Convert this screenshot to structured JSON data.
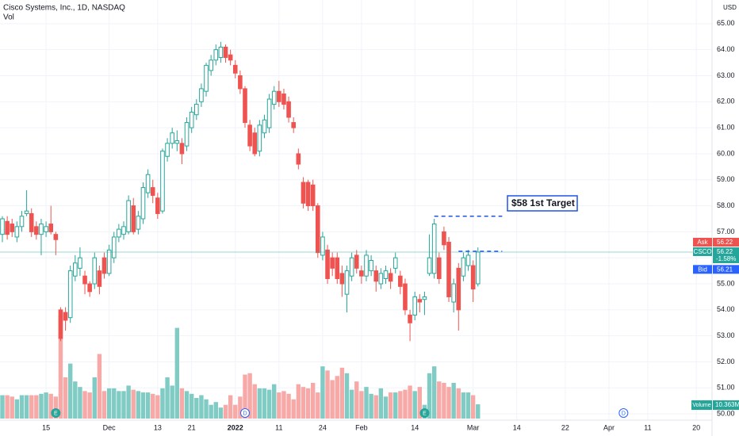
{
  "chart_data": {
    "type": "candlestick",
    "title": "Cisco Systems, Inc., 1D, NASDAQ",
    "subtitle": "Vol",
    "currency": "USD",
    "categories": [
      null,
      null,
      null,
      null,
      null,
      null,
      null,
      null,
      null,
      "15",
      null,
      null,
      null,
      null,
      null,
      null,
      null,
      null,
      null,
      null,
      null,
      null,
      "Dec",
      null,
      null,
      null,
      null,
      null,
      null,
      null,
      null,
      null,
      "13",
      null,
      null,
      null,
      null,
      null,
      null,
      "21",
      null,
      null,
      null,
      null,
      null,
      null,
      null,
      null,
      "2022",
      null,
      null,
      null,
      null,
      null,
      null,
      null,
      null,
      "11",
      null,
      null,
      null,
      null,
      null,
      null,
      null,
      null,
      "24",
      null,
      null,
      null,
      null,
      null,
      null,
      null,
      "Feb",
      null,
      null,
      null,
      null,
      null,
      null,
      null,
      null,
      null,
      null,
      "14",
      null,
      null,
      null,
      null,
      null,
      null,
      null,
      null,
      null,
      null,
      null,
      "Mar",
      null,
      null,
      null,
      null,
      null,
      null,
      null,
      null,
      "14",
      null,
      null,
      null,
      null,
      null,
      null,
      null,
      null,
      null,
      "22",
      null,
      null,
      null,
      null,
      null,
      null,
      null,
      null,
      "Apr",
      null,
      null,
      null,
      null,
      null,
      null,
      null,
      "11",
      null,
      null,
      null,
      null,
      null,
      null,
      null,
      null,
      null,
      "20"
    ],
    "open": [
      56.9,
      57.4,
      57.3,
      56.8,
      57.2,
      57.7,
      57.7,
      57.2,
      56.9,
      57.0,
      57.3,
      56.9,
      54.0,
      53.9,
      53.7,
      55.3,
      55.6,
      55.3,
      55.0,
      55.0,
      55.5,
      56.0,
      55.4,
      56.0,
      56.8,
      56.9,
      57.0,
      58.0,
      57.1,
      57.5,
      58.5,
      58.7,
      58.3,
      57.8,
      59.9,
      60.4,
      60.4,
      60.4,
      60.3,
      61.0,
      61.5,
      62.0,
      62.4,
      63.2,
      63.6,
      63.7,
      64.1,
      63.8,
      63.4,
      63.0,
      62.5,
      61.1,
      60.8,
      60.1,
      60.8,
      61.0,
      61.9,
      62.4,
      62.3,
      62.0,
      61.2,
      60.0,
      58.9,
      58.9,
      58.8,
      58.0,
      56.1,
      56.3,
      56.0,
      56.0,
      55.4,
      54.6,
      55.3,
      56.1,
      55.5,
      55.3,
      55.5,
      55.5,
      55.0,
      55.2,
      55.4,
      55.6,
      55.3,
      55.0,
      53.8,
      53.8,
      54.4,
      54.4,
      55.4,
      55.4,
      56.0,
      57.0,
      56.6,
      54.3,
      55.6,
      55.3,
      55.7,
      55.7,
      55.0,
      null,
      null,
      null,
      null,
      null,
      null,
      null,
      null,
      null,
      null,
      null,
      null,
      null,
      null,
      null,
      null,
      null,
      null,
      null,
      null,
      null,
      null,
      null,
      null,
      null,
      null,
      null,
      null,
      null,
      null,
      null,
      null,
      null,
      null,
      null,
      null,
      null,
      null,
      null,
      null,
      null,
      null,
      null,
      null,
      null
    ],
    "high": [
      57.6,
      57.6,
      57.5,
      57.4,
      57.8,
      58.6,
      57.9,
      57.4,
      57.5,
      57.4,
      58.0,
      57.0,
      54.1,
      54.1,
      55.7,
      56.1,
      56.4,
      55.5,
      55.1,
      56.2,
      55.7,
      56.2,
      56.5,
      57.0,
      57.3,
      57.4,
      58.4,
      58.3,
      57.8,
      58.9,
      59.4,
      59.0,
      58.5,
      60.2,
      60.6,
      61.0,
      60.9,
      60.6,
      61.4,
      61.8,
      62.1,
      62.7,
      63.5,
      63.8,
      64.2,
      64.3,
      64.2,
      64.0,
      63.6,
      63.2,
      62.6,
      61.3,
      61.0,
      61.3,
      61.5,
      62.3,
      62.6,
      62.8,
      62.5,
      62.2,
      61.4,
      60.2,
      59.1,
      59.0,
      59.0,
      58.1,
      57.0,
      56.5,
      56.2,
      56.2,
      55.7,
      55.7,
      56.2,
      56.3,
      55.7,
      56.3,
      56.1,
      55.7,
      55.6,
      55.7,
      55.6,
      56.2,
      55.5,
      55.2,
      54.0,
      54.7,
      54.6,
      54.7,
      56.9,
      57.5,
      56.2,
      57.2,
      56.8,
      55.2,
      55.8,
      56.2,
      56.3,
      55.9,
      56.4,
      null,
      null,
      null,
      null,
      null,
      null,
      null,
      null,
      null,
      null,
      null,
      null,
      null,
      null,
      null,
      null,
      null,
      null,
      null,
      null,
      null,
      null,
      null,
      null,
      null,
      null,
      null,
      null,
      null,
      null,
      null,
      null,
      null,
      null,
      null,
      null,
      null,
      null,
      null,
      null,
      null,
      null,
      null,
      null,
      null
    ],
    "low": [
      56.6,
      56.7,
      56.8,
      56.6,
      57.0,
      57.6,
      56.8,
      56.7,
      56.1,
      56.8,
      56.9,
      56.1,
      52.8,
      53.2,
      53.5,
      55.1,
      55.3,
      54.6,
      54.5,
      54.8,
      54.6,
      55.2,
      55.3,
      55.8,
      56.6,
      56.7,
      56.9,
      56.9,
      56.9,
      57.3,
      58.3,
      58.1,
      57.5,
      57.7,
      59.7,
      60.2,
      60.1,
      59.6,
      60.1,
      60.8,
      61.3,
      61.8,
      62.2,
      63.0,
      63.4,
      63.5,
      63.5,
      63.4,
      62.9,
      62.3,
      61.0,
      60.1,
      59.9,
      59.9,
      60.6,
      60.8,
      61.7,
      61.8,
      61.7,
      61.2,
      60.8,
      59.4,
      57.9,
      57.8,
      57.8,
      56.0,
      55.9,
      55.0,
      55.3,
      55.0,
      54.5,
      53.9,
      55.1,
      55.4,
      55.0,
      55.1,
      55.3,
      54.7,
      54.8,
      55.0,
      54.8,
      55.4,
      54.6,
      53.8,
      52.8,
      53.6,
      53.9,
      53.8,
      55.3,
      55.2,
      55.0,
      56.3,
      54.3,
      53.9,
      53.2,
      55.1,
      55.5,
      54.3,
      54.9,
      null,
      null,
      null,
      null,
      null,
      null,
      null,
      null,
      null,
      null,
      null,
      null,
      null,
      null,
      null,
      null,
      null,
      null,
      null,
      null,
      null,
      null,
      null,
      null,
      null,
      null,
      null,
      null,
      null,
      null,
      null,
      null,
      null,
      null,
      null,
      null,
      null,
      null,
      null,
      null,
      null,
      null,
      null,
      null,
      null
    ],
    "close": [
      57.5,
      56.9,
      57.0,
      57.2,
      57.6,
      57.8,
      57.0,
      56.9,
      57.3,
      57.2,
      57.0,
      56.7,
      52.9,
      53.6,
      55.5,
      55.8,
      56.0,
      55.0,
      54.7,
      56.0,
      54.9,
      55.4,
      56.3,
      56.8,
      57.1,
      57.2,
      58.2,
      57.0,
      57.6,
      58.7,
      59.2,
      58.4,
      57.7,
      60.1,
      60.4,
      60.8,
      60.5,
      60.0,
      61.2,
      61.6,
      61.9,
      62.5,
      63.4,
      63.6,
      64.0,
      64.1,
      63.7,
      63.6,
      63.1,
      62.5,
      61.2,
      60.3,
      60.0,
      61.1,
      61.3,
      62.1,
      62.4,
      62.0,
      61.9,
      61.4,
      61.0,
      59.6,
      58.1,
      58.0,
      58.0,
      56.2,
      56.8,
      55.2,
      55.6,
      55.2,
      55.0,
      55.5,
      56.0,
      55.6,
      55.3,
      56.1,
      55.9,
      55.1,
      55.4,
      55.5,
      55.1,
      56.0,
      54.9,
      54.0,
      53.5,
      54.5,
      54.3,
      54.5,
      56.0,
      57.3,
      55.2,
      56.5,
      54.5,
      55.0,
      54.0,
      56.0,
      56.1,
      54.8,
      56.22,
      null,
      null,
      null,
      null,
      null,
      null,
      null,
      null,
      null,
      null,
      null,
      null,
      null,
      null,
      null,
      null,
      null,
      null,
      null,
      null,
      null,
      null,
      null,
      null,
      null,
      null,
      null,
      null,
      null,
      null,
      null,
      null,
      null,
      null,
      null,
      null,
      null,
      null,
      null,
      null,
      null,
      null,
      null,
      null,
      null
    ],
    "volume": [
      17,
      17,
      16,
      14,
      17,
      17,
      17,
      17,
      18,
      19,
      18,
      16,
      75,
      30,
      40,
      27,
      23,
      20,
      19,
      30,
      47,
      20,
      22,
      22,
      20,
      20,
      24,
      21,
      20,
      19,
      19,
      18,
      17,
      22,
      30,
      24,
      66,
      22,
      20,
      18,
      15,
      17,
      14,
      10,
      12,
      8,
      10,
      17,
      10,
      16,
      32,
      33,
      25,
      22,
      22,
      21,
      25,
      19,
      20,
      18,
      14,
      25,
      23,
      22,
      26,
      19,
      38,
      35,
      28,
      31,
      37,
      33,
      21,
      27,
      20,
      23,
      18,
      17,
      22,
      16,
      19,
      19,
      20,
      21,
      24,
      20,
      23,
      10,
      33,
      38,
      27,
      26,
      23,
      26,
      22,
      19,
      19,
      17,
      10.363,
      null,
      null,
      null,
      null,
      null,
      null,
      null,
      null,
      null,
      null,
      null,
      null,
      null,
      null,
      null,
      null,
      null,
      null,
      null,
      null,
      null,
      null,
      null,
      null,
      null,
      null,
      null,
      null,
      null,
      null,
      null,
      null,
      null,
      null,
      null,
      null,
      null,
      null,
      null,
      null,
      null,
      null,
      null,
      null,
      null
    ],
    "up_color": "#26a69a",
    "down_color": "#ef5350",
    "volume_up_color": "#80cbc4",
    "volume_down_color": "#f7a9a7",
    "volume_label": {
      "name": "Volume",
      "value": "10.363M"
    },
    "ylim": [
      49.76,
      65.91
    ],
    "yticks": [
      {
        "value": 50,
        "label": "50.00"
      },
      {
        "value": 51,
        "label": "51.00"
      },
      {
        "value": 52,
        "label": "52.00"
      },
      {
        "value": 53,
        "label": "53.00"
      },
      {
        "value": 54,
        "label": "54.00"
      },
      {
        "value": 55,
        "label": "55.00"
      },
      {
        "value": 56,
        "label": "56.00"
      },
      {
        "value": 57,
        "label": "57.00"
      },
      {
        "value": 58,
        "label": "58.00"
      },
      {
        "value": 59,
        "label": "59.00"
      },
      {
        "value": 60,
        "label": "60.00"
      },
      {
        "value": 61,
        "label": "61.00"
      },
      {
        "value": 62,
        "label": "62.00"
      },
      {
        "value": 63,
        "label": "63.00"
      },
      {
        "value": 64,
        "label": "64.00"
      },
      {
        "value": 65,
        "label": "65.00"
      }
    ],
    "grid": true,
    "price_labels": {
      "ask_name": "Ask",
      "ask": 56.22,
      "symbol": "CSCO",
      "last": 56.22,
      "change": "-1.58%",
      "bid_name": "Bid",
      "bid": 56.21
    },
    "target_lines": [
      {
        "value": 57.6,
        "from": 89,
        "to": 103
      },
      {
        "value": 56.25,
        "from": 94,
        "to": 103
      }
    ],
    "annotation": "$58 1st Target",
    "events": [
      {
        "label": "E",
        "index": 11
      },
      {
        "label": "D",
        "index": 50
      },
      {
        "label": "E",
        "index": 87
      },
      {
        "label": "D",
        "index": 128
      }
    ]
  }
}
